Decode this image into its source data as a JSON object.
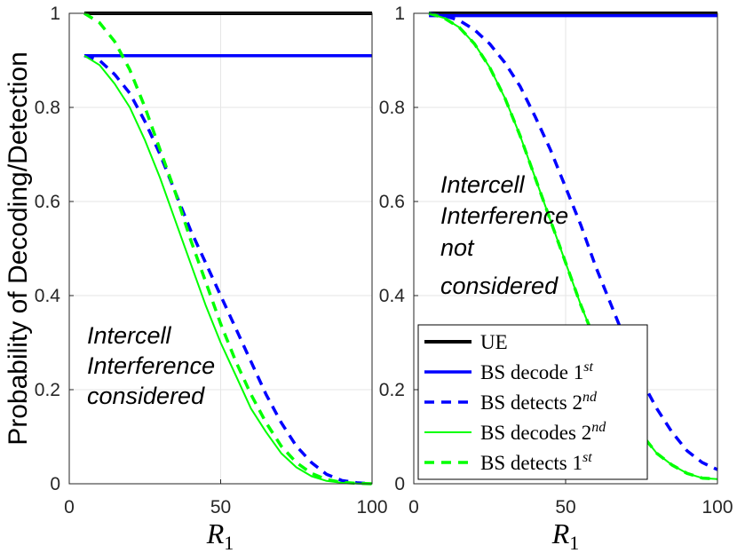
{
  "y_label": "Probability of Decoding/Detection",
  "x_label": "R",
  "x_label_sub": "1",
  "legend": {
    "entries": [
      {
        "series": "ue",
        "label": "UE",
        "sup": ""
      },
      {
        "series": "bs_decode_1st",
        "label": "BS decode 1",
        "sup": "st"
      },
      {
        "series": "bs_detects_2nd",
        "label": "BS detects 2",
        "sup": "nd"
      },
      {
        "series": "bs_decodes_2nd",
        "label": "BS decodes 2",
        "sup": "nd"
      },
      {
        "series": "bs_detects_1st",
        "label": "BS detects 1",
        "sup": "st"
      }
    ]
  },
  "styles": {
    "ue": {
      "color": "#000000",
      "dash": "",
      "width": 4
    },
    "bs_decode_1st": {
      "color": "#0000ff",
      "dash": "",
      "width": 3.5
    },
    "bs_detects_2nd": {
      "color": "#0000ff",
      "dash": "11 8",
      "width": 3.5
    },
    "bs_decodes_2nd": {
      "color": "#00ff00",
      "dash": "",
      "width": 2
    },
    "bs_detects_1st": {
      "color": "#00ff00",
      "dash": "11 8",
      "width": 3.5
    }
  },
  "chart_data": [
    {
      "type": "line",
      "panel": "left",
      "annotation": [
        "Intercell",
        "Interference",
        "considered"
      ],
      "xlim": [
        0,
        100
      ],
      "ylim": [
        0,
        1
      ],
      "xticks": [
        0,
        50,
        100
      ],
      "yticks": [
        0,
        0.2,
        0.4,
        0.6,
        0.8,
        1
      ],
      "ytick_labels": [
        "0",
        "0.2",
        "0.4",
        "0.6",
        "0.8",
        "1"
      ],
      "grid": true,
      "x": [
        5,
        10,
        15,
        20,
        25,
        30,
        35,
        40,
        45,
        50,
        55,
        60,
        65,
        70,
        75,
        80,
        85,
        90,
        95,
        100
      ],
      "series": [
        {
          "name": "ue",
          "values": [
            1,
            1,
            1,
            1,
            1,
            1,
            1,
            1,
            1,
            1,
            1,
            1,
            1,
            1,
            1,
            1,
            1,
            1,
            1,
            1
          ]
        },
        {
          "name": "bs_decode_1st",
          "values": [
            0.91,
            0.91,
            0.91,
            0.91,
            0.91,
            0.91,
            0.91,
            0.91,
            0.91,
            0.91,
            0.91,
            0.91,
            0.91,
            0.91,
            0.91,
            0.91,
            0.91,
            0.91,
            0.91,
            0.91
          ]
        },
        {
          "name": "bs_detects_2nd",
          "values": [
            0.91,
            0.9,
            0.87,
            0.83,
            0.77,
            0.7,
            0.62,
            0.54,
            0.47,
            0.4,
            0.33,
            0.26,
            0.19,
            0.13,
            0.08,
            0.045,
            0.02,
            0.007,
            0.002,
            0
          ]
        },
        {
          "name": "bs_decodes_2nd",
          "values": [
            0.91,
            0.89,
            0.85,
            0.8,
            0.73,
            0.65,
            0.56,
            0.47,
            0.38,
            0.3,
            0.23,
            0.16,
            0.11,
            0.065,
            0.035,
            0.016,
            0.006,
            0.002,
            0.0005,
            0
          ]
        },
        {
          "name": "bs_detects_1st",
          "values": [
            1,
            0.98,
            0.94,
            0.88,
            0.8,
            0.71,
            0.62,
            0.52,
            0.43,
            0.34,
            0.26,
            0.19,
            0.13,
            0.08,
            0.045,
            0.022,
            0.009,
            0.003,
            0.001,
            0
          ]
        }
      ]
    },
    {
      "type": "line",
      "panel": "right",
      "annotation": [
        "Intercell",
        "Interference",
        "not",
        "considered"
      ],
      "xlim": [
        0,
        100
      ],
      "ylim": [
        0,
        1
      ],
      "xticks": [
        0,
        50,
        100
      ],
      "yticks": [
        0,
        0.2,
        0.4,
        0.6,
        0.8,
        1
      ],
      "ytick_labels": [
        "0",
        "0.2",
        "0.4",
        "0.6",
        "0.8",
        "1"
      ],
      "grid": true,
      "x": [
        5,
        10,
        15,
        20,
        25,
        30,
        35,
        40,
        45,
        50,
        55,
        60,
        65,
        70,
        75,
        80,
        85,
        90,
        95,
        100
      ],
      "series": [
        {
          "name": "ue",
          "values": [
            1,
            1,
            1,
            1,
            1,
            1,
            1,
            1,
            1,
            1,
            1,
            1,
            1,
            1,
            1,
            1,
            1,
            1,
            1,
            1
          ]
        },
        {
          "name": "bs_decode_1st",
          "values": [
            0.995,
            0.995,
            0.995,
            0.995,
            0.995,
            0.995,
            0.995,
            0.995,
            0.995,
            0.995,
            0.995,
            0.995,
            0.995,
            0.995,
            0.995,
            0.995,
            0.995,
            0.995,
            0.995,
            0.995
          ]
        },
        {
          "name": "bs_detects_2nd",
          "values": [
            1,
            0.995,
            0.985,
            0.965,
            0.935,
            0.895,
            0.845,
            0.78,
            0.71,
            0.63,
            0.55,
            0.46,
            0.38,
            0.3,
            0.22,
            0.16,
            0.11,
            0.07,
            0.045,
            0.03
          ]
        },
        {
          "name": "bs_decodes_2nd",
          "values": [
            1,
            0.99,
            0.97,
            0.935,
            0.885,
            0.82,
            0.74,
            0.65,
            0.56,
            0.47,
            0.38,
            0.3,
            0.22,
            0.155,
            0.105,
            0.065,
            0.04,
            0.022,
            0.012,
            0.01
          ]
        },
        {
          "name": "bs_detects_1st",
          "values": [
            1,
            0.99,
            0.97,
            0.935,
            0.885,
            0.82,
            0.74,
            0.65,
            0.56,
            0.47,
            0.38,
            0.3,
            0.22,
            0.155,
            0.105,
            0.065,
            0.04,
            0.022,
            0.012,
            0.01
          ]
        }
      ]
    }
  ]
}
